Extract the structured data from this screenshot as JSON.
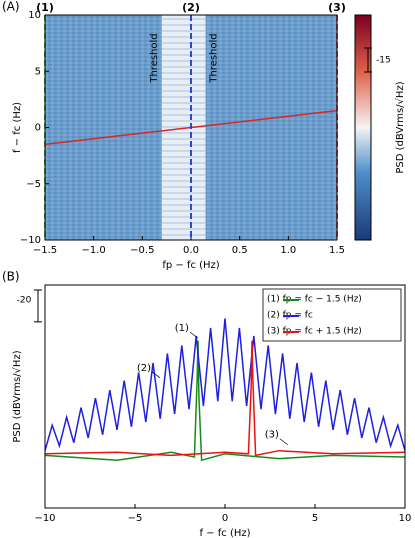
{
  "chart_data": [
    {
      "type": "heatmap",
      "panel_label": "(A)",
      "xlabel": "fp − fc (Hz)",
      "ylabel": "f − fc (Hz)",
      "xlim": [
        -1.5,
        1.5
      ],
      "ylim": [
        -10,
        10
      ],
      "xticks": [
        {
          "value": -1.5,
          "label": "−1.5"
        },
        {
          "value": -1.0,
          "label": "−1.0"
        },
        {
          "value": -0.5,
          "label": "−0.5"
        },
        {
          "value": 0.0,
          "label": "0.0"
        },
        {
          "value": 0.5,
          "label": "0.5"
        },
        {
          "value": 1.0,
          "label": "1.0"
        },
        {
          "value": 1.5,
          "label": "1.5"
        }
      ],
      "yticks": [
        {
          "value": -10,
          "label": "−10"
        },
        {
          "value": -5,
          "label": "−5"
        },
        0,
        5,
        10
      ],
      "threshold_region": [
        -0.3,
        0.15
      ],
      "threshold_label": "Threshold",
      "series": [
        {
          "x": [
            -1.5,
            1.5
          ],
          "values": [
            -1.5,
            1.5
          ],
          "color": "#d62728"
        }
      ],
      "markers": [
        {
          "x": -1.5,
          "label": "(1)",
          "color": "#2ca02c"
        },
        {
          "x": 0.0,
          "label": "(2)",
          "color": "#2233cc"
        },
        {
          "x": 1.5,
          "label": "(3)",
          "color": "#d62728"
        }
      ],
      "colorbar_label": "PSD (dBVrms/√Hz)",
      "colorbar_scale": -15
    },
    {
      "type": "line",
      "panel_label": "(B)",
      "xlabel": "f − fc (Hz)",
      "ylabel": "PSD (dBVrms/√Hz)",
      "xlim": [
        -10,
        10
      ],
      "ylim": [
        0,
        140
      ],
      "xticks": [
        {
          "value": -10,
          "label": "−10"
        },
        {
          "value": -5,
          "label": "−5"
        },
        0,
        5,
        10
      ],
      "scale_bar": -20,
      "legend": "upper right",
      "series": [
        {
          "name": "(1)   fp = fc − 1.5 (Hz)",
          "color": "#1a8a1a",
          "x": [
            -10,
            -6,
            -3,
            -1.7,
            -1.55,
            -1.5,
            -1.45,
            -1.3,
            0,
            3,
            6,
            10
          ],
          "values": [
            33,
            30,
            35,
            32,
            80,
            105,
            70,
            30,
            34,
            31,
            33,
            32
          ]
        },
        {
          "name": "(2)   fp = fc",
          "color": "#1f1fe0",
          "x": [
            -10,
            -9.6,
            -9.2,
            -8.8,
            -8.4,
            -8.0,
            -7.6,
            -7.2,
            -6.8,
            -6.4,
            -6.0,
            -5.6,
            -5.2,
            -4.8,
            -4.4,
            -4.0,
            -3.6,
            -3.2,
            -2.8,
            -2.4,
            -2.0,
            -1.6,
            -1.2,
            -0.8,
            -0.4,
            0.0,
            0.4,
            0.8,
            1.2,
            1.6,
            2.0,
            2.4,
            2.8,
            3.2,
            3.6,
            4.0,
            4.4,
            4.8,
            5.2,
            5.6,
            6.0,
            6.4,
            6.8,
            7.2,
            7.6,
            8.0,
            8.4,
            8.8,
            9.2,
            9.6,
            10
          ],
          "values": [
            36,
            52,
            39,
            57,
            41,
            63,
            44,
            69,
            46,
            74,
            49,
            80,
            51,
            85,
            54,
            91,
            56,
            97,
            59,
            102,
            62,
            108,
            64,
            113,
            67,
            119,
            67,
            113,
            64,
            108,
            62,
            102,
            59,
            97,
            56,
            91,
            54,
            85,
            51,
            80,
            49,
            74,
            46,
            69,
            44,
            63,
            41,
            57,
            39,
            52,
            36
          ]
        },
        {
          "name": "(3)   fp = fc + 1.5 (Hz)",
          "color": "#ee1111",
          "x": [
            -10,
            -6,
            -3,
            0,
            1.3,
            1.45,
            1.5,
            1.55,
            1.7,
            3,
            6,
            10
          ],
          "values": [
            34,
            35,
            33,
            35,
            34,
            75,
            105,
            80,
            33,
            36,
            34,
            35
          ]
        }
      ],
      "annotations": [
        {
          "x": -2.4,
          "y": 113,
          "label": "(1)"
        },
        {
          "x": -4.5,
          "y": 88,
          "label": "(2)"
        },
        {
          "x": 2.6,
          "y": 46,
          "label": "(3)"
        }
      ]
    }
  ]
}
